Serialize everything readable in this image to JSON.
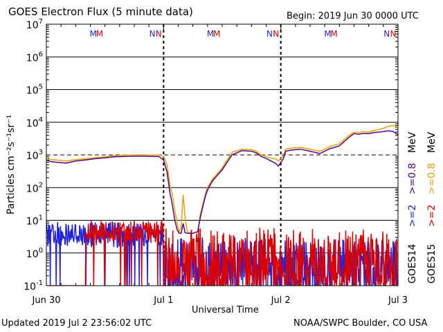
{
  "header": {
    "title": "GOES Electron Flux (5 minute data)",
    "begin": "Begin: 2019 Jun 30 0000 UTC"
  },
  "footer": {
    "updated": "Updated 2019 Jul  2 23:56:02 UTC",
    "credit": "NOAA/SWPC Boulder, CO USA"
  },
  "chart_data": {
    "type": "line",
    "title": "GOES Electron Flux (5 minute data)",
    "xlabel": "Universal Time",
    "ylabel": "Particles cm⁻²s⁻¹sr⁻¹",
    "yscale": "log",
    "ylim": [
      0.1,
      10000000
    ],
    "xlim_hours": [
      0,
      72
    ],
    "x_ticks": [
      {
        "hour": 0,
        "label": "Jun 30"
      },
      {
        "hour": 24,
        "label": "Jul 1"
      },
      {
        "hour": 48,
        "label": "Jul 2"
      },
      {
        "hour": 72,
        "label": "Jul 3"
      }
    ],
    "y_ticks": [
      {
        "value": 0.1,
        "base": "10",
        "exp": "-1"
      },
      {
        "value": 1,
        "base": "10",
        "exp": "0"
      },
      {
        "value": 10,
        "base": "10",
        "exp": "1"
      },
      {
        "value": 100,
        "base": "10",
        "exp": "2"
      },
      {
        "value": 1000,
        "base": "10",
        "exp": "3"
      },
      {
        "value": 10000,
        "base": "10",
        "exp": "4"
      },
      {
        "value": 100000,
        "base": "10",
        "exp": "5"
      },
      {
        "value": 1000000,
        "base": "10",
        "exp": "6"
      },
      {
        "value": 10000000,
        "base": "10",
        "exp": "7"
      }
    ],
    "threshold": 1000,
    "grid": true,
    "mn_markers": [
      {
        "label": "M",
        "hour": 9.6,
        "color": "#2222dd"
      },
      {
        "label": "M",
        "hour": 10.9,
        "color": "#dd0000"
      },
      {
        "label": "N",
        "hour": 21.7,
        "color": "#2222dd"
      },
      {
        "label": "N",
        "hour": 23.0,
        "color": "#dd0000"
      },
      {
        "label": "M",
        "hour": 33.6,
        "color": "#2222dd"
      },
      {
        "label": "M",
        "hour": 34.9,
        "color": "#dd0000"
      },
      {
        "label": "N",
        "hour": 45.7,
        "color": "#2222dd"
      },
      {
        "label": "N",
        "hour": 47.0,
        "color": "#dd0000"
      },
      {
        "label": "M",
        "hour": 57.6,
        "color": "#2222dd"
      },
      {
        "label": "M",
        "hour": 58.9,
        "color": "#dd0000"
      },
      {
        "label": "N",
        "hour": 69.7,
        "color": "#2222dd"
      },
      {
        "label": "N",
        "hour": 71.0,
        "color": "#dd0000"
      }
    ],
    "legend": {
      "goes14": "GOES14",
      "goes15": "GOES15",
      "e14_label": ">=2",
      "e14_color": "#2222dd",
      "e14_label2": ">=0.8",
      "e14_color2": "#550088",
      "e15_label": ">=2",
      "e15_color": "#dd0000",
      "e15_label2": ">=0.8",
      "e15_color2": "#e8a000",
      "unit": "MeV"
    },
    "series": [
      {
        "name": "GOES15 >=0.8 MeV",
        "color": "#e8a000",
        "hours": [
          0,
          1,
          2,
          4,
          6,
          8,
          10,
          12,
          14,
          16,
          18,
          20,
          22,
          23,
          24,
          24.7,
          25.3,
          25.8,
          26.3,
          26.8,
          27.2,
          27.6,
          28,
          28.4,
          28.8,
          29.2,
          30,
          31,
          31.5,
          32,
          32.5,
          33,
          34,
          36,
          38,
          40,
          42,
          43,
          44,
          45,
          46,
          47,
          47.5,
          48,
          48.5,
          49,
          50,
          52,
          54,
          56,
          57,
          58,
          59,
          60,
          62,
          63,
          64,
          65,
          66,
          67,
          68,
          69,
          70,
          71,
          72
        ],
        "values": [
          800,
          720,
          700,
          650,
          720,
          760,
          820,
          870,
          950,
          980,
          1000,
          1000,
          980,
          1000,
          900,
          500,
          120,
          60,
          20,
          8,
          4.5,
          6,
          60,
          12,
          5,
          4,
          4,
          4.5,
          15,
          30,
          60,
          100,
          180,
          400,
          1200,
          1500,
          1450,
          1300,
          1000,
          900,
          800,
          750,
          650,
          800,
          900,
          1500,
          1600,
          1700,
          1500,
          1300,
          1500,
          1800,
          2000,
          2200,
          4000,
          5000,
          4800,
          5200,
          5000,
          5500,
          6000,
          6500,
          7500,
          8000,
          7000
        ]
      },
      {
        "name": "GOES14 >=0.8 MeV",
        "color": "#550088",
        "hours": [
          0,
          1,
          2,
          4,
          6,
          8,
          10,
          12,
          14,
          16,
          18,
          20,
          22,
          23,
          24,
          24.7,
          25.3,
          25.8,
          26.3,
          26.8,
          27.2,
          27.6,
          28,
          28.4,
          28.8,
          29.2,
          30,
          31,
          31.5,
          32,
          32.5,
          33,
          34,
          36,
          38,
          40,
          42,
          43,
          44,
          45,
          46,
          47,
          47.5,
          48,
          48.5,
          49,
          50,
          52,
          54,
          56,
          57,
          58,
          59,
          60,
          62,
          63,
          64,
          65,
          66,
          67,
          68,
          69,
          70,
          71,
          72
        ],
        "values": [
          700,
          620,
          600,
          560,
          650,
          700,
          770,
          820,
          880,
          900,
          920,
          920,
          900,
          900,
          700,
          300,
          70,
          30,
          10,
          5,
          4,
          4,
          8,
          4.2,
          4,
          4,
          4,
          4.5,
          12,
          25,
          50,
          85,
          160,
          350,
          1000,
          1350,
          1300,
          1150,
          900,
          780,
          650,
          550,
          450,
          600,
          750,
          1300,
          1400,
          1500,
          1300,
          1100,
          1300,
          1550,
          1700,
          1900,
          3500,
          4500,
          4300,
          4600,
          4500,
          4800,
          5000,
          5200,
          5500,
          5200,
          4200
        ]
      },
      {
        "name": "GOES14 >=2 MeV",
        "color": "#2222dd",
        "hours": [
          0,
          72
        ],
        "values": [
          0.1,
          8
        ],
        "noise": {
          "seed": 14,
          "step_h": 0.1,
          "floor": 0.1,
          "high_until_h": 24,
          "high_range": [
            1.5,
            9
          ],
          "low_range": [
            0.1,
            3
          ]
        }
      },
      {
        "name": "GOES15 >=2 MeV",
        "color": "#dd0000",
        "hours": [
          0,
          72
        ],
        "values": [
          0.1,
          10
        ],
        "noise": {
          "seed": 15,
          "step_h": 0.1,
          "floor": 0.1,
          "gap_h": [
            0,
            8
          ],
          "high_until_h": 24,
          "high_range": [
            2,
            10
          ],
          "low_range": [
            0.1,
            6
          ]
        }
      }
    ]
  }
}
